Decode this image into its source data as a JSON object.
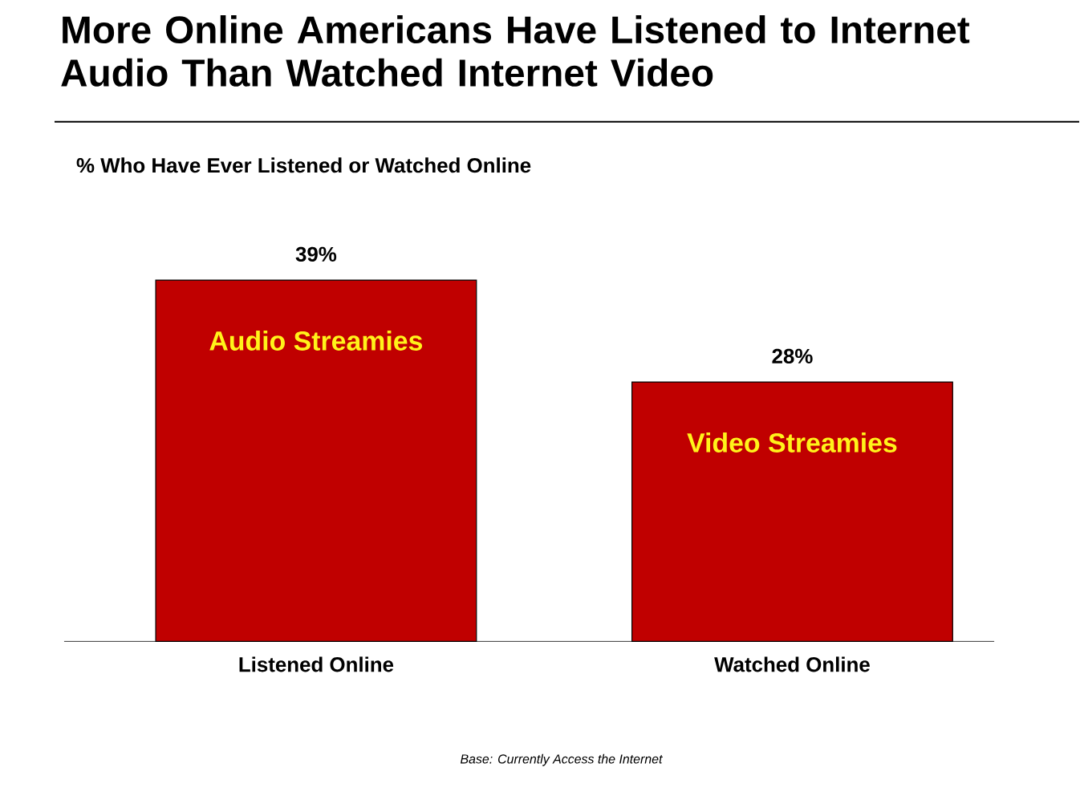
{
  "chart_data": {
    "type": "bar",
    "title": "More Online Americans Have Listened to Internet Audio Than Watched Internet Video",
    "subtitle": "% Who Have Ever Listened or Watched Online",
    "categories": [
      "Listened Online",
      "Watched Online"
    ],
    "values": [
      39,
      28
    ],
    "value_labels": [
      "39%",
      "28%"
    ],
    "color": "#c00000",
    "annotations": [
      "Audio Streamies",
      "Video Streamies",
      "Base: Currently Access the Internet"
    ]
  }
}
